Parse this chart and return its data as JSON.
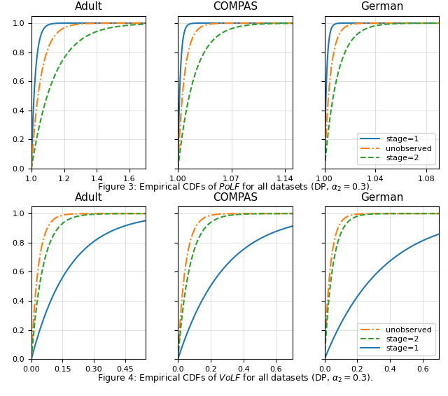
{
  "subplot_titles": [
    "Adult",
    "COMPAS",
    "German"
  ],
  "colors": {
    "stage1": "#1f77b4",
    "unobserved": "#ff7f0e",
    "stage2": "#2ca02c"
  },
  "row1": {
    "adult": {
      "xlim": [
        1.0,
        1.7
      ],
      "xticks": [
        1.0,
        1.2,
        1.4,
        1.6
      ]
    },
    "compas": {
      "xlim": [
        1.0,
        1.15
      ],
      "xticks": [
        1.0,
        1.07,
        1.14
      ]
    },
    "german": {
      "xlim": [
        1.0,
        1.09
      ],
      "xticks": [
        1.0,
        1.04,
        1.08
      ]
    }
  },
  "row2": {
    "adult": {
      "xlim": [
        0.0,
        0.55
      ],
      "xticks": [
        0.0,
        0.15,
        0.3,
        0.45
      ]
    },
    "compas": {
      "xlim": [
        0.0,
        0.7
      ],
      "xticks": [
        0.0,
        0.2,
        0.4,
        0.6
      ]
    },
    "german": {
      "xlim": [
        0.0,
        0.7
      ],
      "xticks": [
        0.0,
        0.2,
        0.4,
        0.6
      ]
    }
  },
  "ylim": [
    0.0,
    1.05
  ],
  "yticks": [
    0.0,
    0.2,
    0.4,
    0.6,
    0.8,
    1.0
  ],
  "fig3_caption": "Figure 3: Empirical CDFs of $PoLF$ for all datasets (DP, $\\alpha_2 = 0.3$).",
  "fig4_caption": "Figure 4: Empirical CDFs of $VoLF$ for all datasets (DP, $\\alpha_2 = 0.3$)."
}
